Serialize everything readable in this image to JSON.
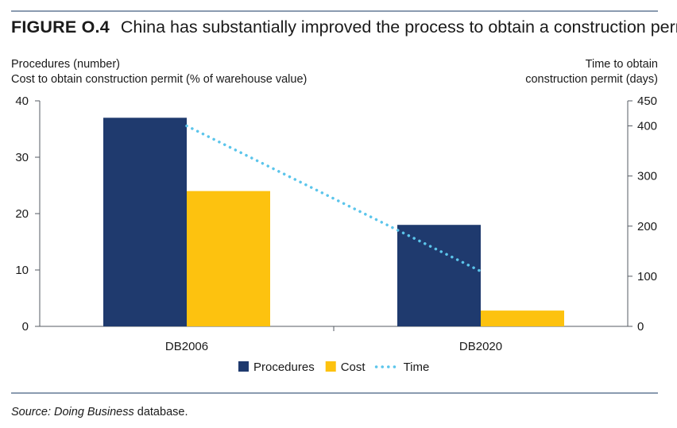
{
  "figure": {
    "label": "FIGURE O.4",
    "title": "China has substantially improved the process to obtain a construction permit"
  },
  "axes": {
    "left_title_line1": "Procedures (number)",
    "left_title_line2": "Cost to obtain construction permit (% of warehouse value)",
    "right_title_line1": "Time to obtain",
    "right_title_line2": "construction permit (days)"
  },
  "source": {
    "prefix": "Source: Doing Business",
    "suffix": " database."
  },
  "chart_data": {
    "type": "bar",
    "categories": [
      "DB2006",
      "DB2020"
    ],
    "series": [
      {
        "name": "Procedures",
        "kind": "bar",
        "axis": "left",
        "color": "#1f3a6e",
        "values": [
          37,
          18
        ]
      },
      {
        "name": "Cost",
        "kind": "bar",
        "axis": "left",
        "color": "#fdc20f",
        "values": [
          24,
          2.8
        ]
      },
      {
        "name": "Time",
        "kind": "line",
        "style": "dotted",
        "axis": "right",
        "color": "#5bc5eb",
        "values": [
          400,
          110
        ]
      }
    ],
    "left_axis": {
      "ylim": [
        0,
        40
      ],
      "ticks": [
        0,
        10,
        20,
        30,
        40
      ]
    },
    "right_axis": {
      "ylim": [
        0,
        450
      ],
      "ticks": [
        0,
        100,
        200,
        300,
        400,
        450
      ]
    },
    "legend": {
      "placement": "bottom-center",
      "entries": [
        "Procedures",
        "Cost",
        "Time"
      ]
    },
    "grid": false
  }
}
